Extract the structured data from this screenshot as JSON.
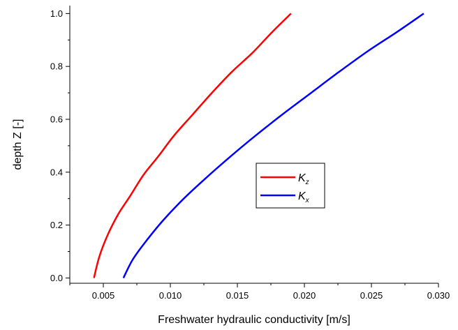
{
  "chart_data": {
    "type": "line",
    "xlabel": "Freshwater hydraulic conductivity [m/s]",
    "ylabel": "depth Z [-]",
    "xlim": [
      0.0025,
      0.03
    ],
    "ylim": [
      -0.02,
      1.03
    ],
    "xticks": [
      0.005,
      0.01,
      0.015,
      0.02,
      0.025,
      0.03
    ],
    "xtick_labels": [
      "0.005",
      "0.010",
      "0.015",
      "0.020",
      "0.025",
      "0.030"
    ],
    "yticks": [
      0.0,
      0.2,
      0.4,
      0.6,
      0.8,
      1.0
    ],
    "ytick_labels": [
      "0.0",
      "0.2",
      "0.4",
      "0.6",
      "0.8",
      "1.0"
    ],
    "grid": false,
    "legend_placement": "center-right",
    "series": [
      {
        "name": "Kz",
        "name_main": "K",
        "name_sub": "z",
        "color": "#ff0000",
        "x": [
          0.0043,
          0.0047,
          0.0053,
          0.0061,
          0.007,
          0.008,
          0.0091,
          0.0103,
          0.0117,
          0.0131,
          0.0146,
          0.0161,
          0.0176,
          0.019
        ],
        "y": [
          0.0,
          0.08,
          0.16,
          0.24,
          0.31,
          0.39,
          0.46,
          0.54,
          0.62,
          0.7,
          0.78,
          0.85,
          0.93,
          1.0
        ]
      },
      {
        "name": "Kx",
        "name_main": "K",
        "name_sub": "x",
        "color": "#0000ff",
        "x": [
          0.0065,
          0.0072,
          0.0082,
          0.0095,
          0.011,
          0.0127,
          0.0145,
          0.0164,
          0.0184,
          0.0205,
          0.0226,
          0.0248,
          0.0269,
          0.0289
        ],
        "y": [
          0.0,
          0.07,
          0.14,
          0.22,
          0.3,
          0.38,
          0.46,
          0.54,
          0.62,
          0.7,
          0.78,
          0.86,
          0.93,
          1.0
        ]
      }
    ]
  }
}
